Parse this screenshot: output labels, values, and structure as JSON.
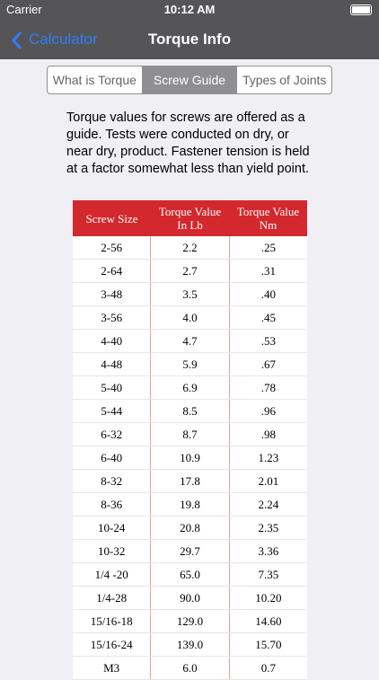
{
  "status_bar": {
    "carrier": "Carrier",
    "time": "10:12 AM"
  },
  "nav_bar": {
    "back": "Calculator",
    "title": "Torque Info"
  },
  "tabs": [
    "What is Torque",
    "Screw Guide",
    "Types of Joints"
  ],
  "selected_tab": 1,
  "intro": "Torque values for screws are offered as a guide. Tests were conducted on dry, or near dry, product. Fastener tension is held at a factor somewhat less than yield point.",
  "table": {
    "header": [
      "Screw Size",
      "Torque Value In Lb",
      "Torque Value Nm"
    ],
    "rows": [
      [
        "2-56",
        "2.2",
        ".25"
      ],
      [
        "2-64",
        "2.7",
        ".31"
      ],
      [
        "3-48",
        "3.5",
        ".40"
      ],
      [
        "3-56",
        "4.0",
        ".45"
      ],
      [
        "4-40",
        "4.7",
        ".53"
      ],
      [
        "4-48",
        "5.9",
        ".67"
      ],
      [
        "5-40",
        "6.9",
        ".78"
      ],
      [
        "5-44",
        "8.5",
        ".96"
      ],
      [
        "6-32",
        "8.7",
        ".98"
      ],
      [
        "6-40",
        "10.9",
        "1.23"
      ],
      [
        "8-32",
        "17.8",
        "2.01"
      ],
      [
        "8-36",
        "19.8",
        "2.24"
      ],
      [
        "10-24",
        "20.8",
        "2.35"
      ],
      [
        "10-32",
        "29.7",
        "3.36"
      ],
      [
        "1/4 -20",
        "65.0",
        "7.35"
      ],
      [
        "1/4-28",
        "90.0",
        "10.20"
      ],
      [
        "15/16-18",
        "129.0",
        "14.60"
      ],
      [
        "15/16-24",
        "139.0",
        "15.70"
      ],
      [
        "M3",
        "6.0",
        "0.7"
      ]
    ]
  }
}
